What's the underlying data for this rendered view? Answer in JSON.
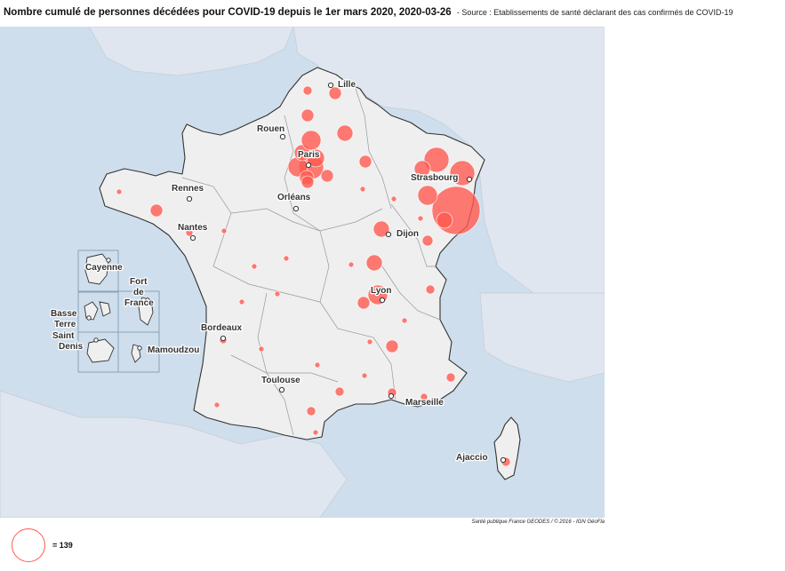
{
  "title": {
    "main": "Nombre cumulé de personnes décédées pour COVID-19 depuis le 1er mars 2020, 2020-03-26",
    "source": "- Source : Etablissements de santé déclarant des cas confirmés de COVID-19"
  },
  "credit": "Santé publique France GEODES / © 2016 - IGN GéoFla",
  "legend": {
    "label": "= 139",
    "reference_value": 139,
    "color": "#ff5a50"
  },
  "colors": {
    "sea": "#cfdeec",
    "land_neighbors": "#e0e6ef",
    "france_fill": "#efefef",
    "bubble": "#ff5a50"
  },
  "cities": [
    {
      "id": "lille",
      "name": "Lille"
    },
    {
      "id": "rouen",
      "name": "Rouen"
    },
    {
      "id": "paris",
      "name": "Paris"
    },
    {
      "id": "strasbourg",
      "name": "Strasbourg"
    },
    {
      "id": "rennes",
      "name": "Rennes"
    },
    {
      "id": "orleans",
      "name": "Orléans"
    },
    {
      "id": "nantes",
      "name": "Nantes"
    },
    {
      "id": "dijon",
      "name": "Dijon"
    },
    {
      "id": "lyon",
      "name": "Lyon"
    },
    {
      "id": "bordeaux",
      "name": "Bordeaux"
    },
    {
      "id": "toulouse",
      "name": "Toulouse"
    },
    {
      "id": "marseille",
      "name": "Marseille"
    },
    {
      "id": "ajaccio",
      "name": "Ajaccio"
    }
  ],
  "overseas": [
    {
      "id": "cayenne",
      "name": "Cayenne"
    },
    {
      "id": "fort-de-france",
      "name": "Fort de France"
    },
    {
      "id": "basse-terre",
      "name": "Basse Terre"
    },
    {
      "id": "saint-denis",
      "name": "Saint Denis"
    },
    {
      "id": "mamoudzou",
      "name": "Mamoudzou"
    }
  ]
}
